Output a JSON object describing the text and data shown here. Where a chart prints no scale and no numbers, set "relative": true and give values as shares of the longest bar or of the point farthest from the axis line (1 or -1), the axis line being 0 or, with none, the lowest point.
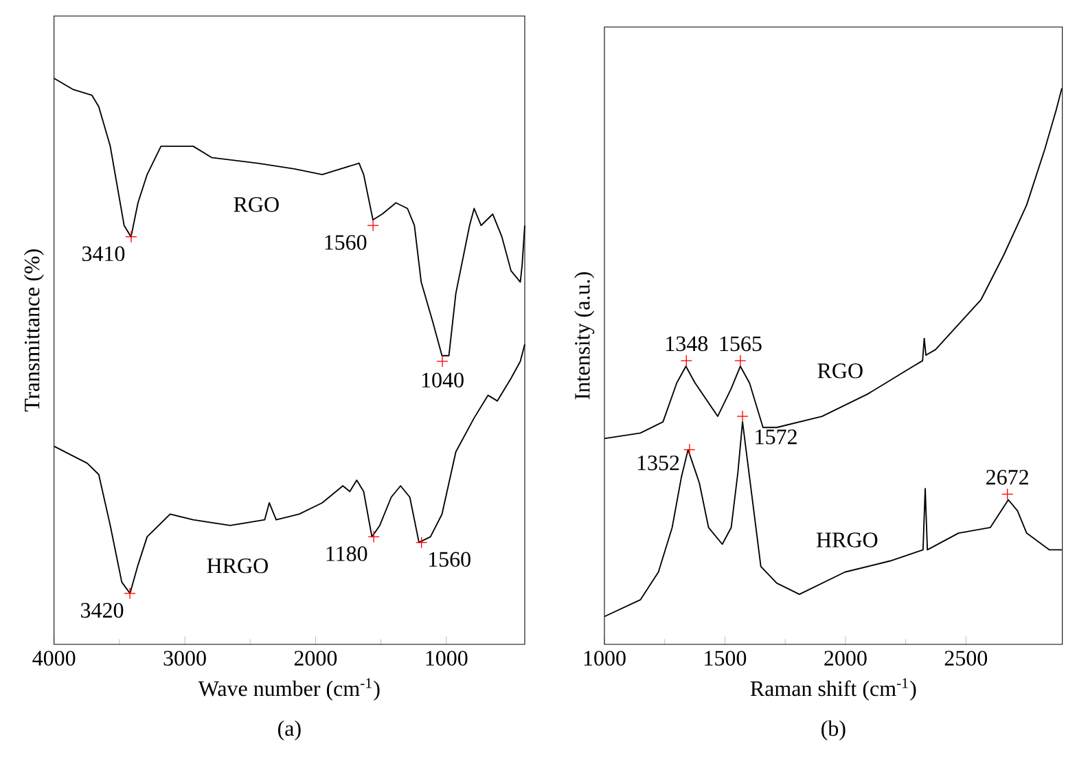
{
  "chart_data": [
    {
      "type": "line",
      "title": "(a)",
      "xlabel": "Wave number (cm$^{-1}$)",
      "ylabel": "Transmittance (%)",
      "relative": true,
      "tick_labels": "x",
      "xlim": [
        4000,
        400
      ],
      "xticks": [
        4000,
        3000,
        2000,
        1000
      ],
      "series": [
        {
          "name": "RGO",
          "color": "#000000",
          "x": [
            4000,
            3852,
            3710,
            3658,
            3570,
            3464,
            3411,
            3358,
            3288,
            3182,
            2936,
            2795,
            2442,
            2161,
            1949,
            1667,
            1632,
            1561,
            1491,
            1385,
            1297,
            1244,
            1192,
            1104,
            1033,
            980,
            927,
            822,
            787,
            734,
            645,
            575,
            505,
            434,
            420,
            400
          ],
          "values": [
            1.0,
            0.98,
            0.97,
            0.95,
            0.88,
            0.74,
            0.72,
            0.78,
            0.83,
            0.88,
            0.88,
            0.86,
            0.85,
            0.84,
            0.83,
            0.85,
            0.83,
            0.75,
            0.76,
            0.78,
            0.77,
            0.74,
            0.64,
            0.57,
            0.51,
            0.51,
            0.62,
            0.74,
            0.77,
            0.74,
            0.76,
            0.72,
            0.66,
            0.64,
            0.67,
            0.74
          ]
        },
        {
          "name": "HRGO",
          "color": "#000000",
          "x": [
            4000,
            3746,
            3658,
            3570,
            3482,
            3419,
            3358,
            3288,
            3112,
            2936,
            2653,
            2389,
            2354,
            2301,
            2125,
            1949,
            1791,
            1738,
            1685,
            1632,
            1569,
            1509,
            1421,
            1350,
            1279,
            1209,
            1121,
            1033,
            927,
            787,
            681,
            610,
            505,
            434,
            400
          ],
          "values": [
            0.35,
            0.32,
            0.3,
            0.21,
            0.11,
            0.09,
            0.14,
            0.19,
            0.23,
            0.22,
            0.21,
            0.22,
            0.25,
            0.22,
            0.23,
            0.25,
            0.28,
            0.27,
            0.29,
            0.27,
            0.19,
            0.21,
            0.26,
            0.28,
            0.26,
            0.18,
            0.19,
            0.23,
            0.34,
            0.4,
            0.44,
            0.43,
            0.47,
            0.5,
            0.53
          ]
        }
      ],
      "annotations": [
        {
          "text": "3410",
          "x": 3410,
          "y": 0.72
        },
        {
          "text": "1560",
          "x": 1560,
          "y": 0.74
        },
        {
          "text": "1040",
          "x": 1030,
          "y": 0.5
        },
        {
          "text": "3420",
          "x": 3420,
          "y": 0.09
        },
        {
          "text": "1180",
          "x": 1555,
          "y": 0.19
        },
        {
          "text": "1560",
          "x": 1190,
          "y": 0.18
        }
      ]
    },
    {
      "type": "line",
      "title": "(b)",
      "xlabel": "Raman shift (cm$^{-1}$)",
      "ylabel": "Intensity (a.u.)",
      "relative": true,
      "tick_labels": "x",
      "xlim": [
        1000,
        2900
      ],
      "xticks": [
        1000,
        1500,
        2000,
        2500
      ],
      "series": [
        {
          "name": "RGO",
          "color": "#000000",
          "x": [
            1000,
            1149,
            1243,
            1300,
            1338,
            1376,
            1470,
            1526,
            1564,
            1602,
            1658,
            1715,
            1903,
            2092,
            2281,
            2320,
            2327,
            2334,
            2374,
            2563,
            2657,
            2752,
            2827,
            2874,
            2898
          ],
          "values": [
            0.37,
            0.38,
            0.4,
            0.47,
            0.5,
            0.47,
            0.41,
            0.46,
            0.5,
            0.47,
            0.39,
            0.39,
            0.41,
            0.45,
            0.5,
            0.51,
            0.55,
            0.52,
            0.53,
            0.62,
            0.7,
            0.79,
            0.89,
            0.96,
            1.0
          ]
        },
        {
          "name": "HRGO",
          "color": "#000000",
          "x": [
            1000,
            1149,
            1224,
            1281,
            1319,
            1347,
            1394,
            1432,
            1489,
            1526,
            1554,
            1573,
            1611,
            1649,
            1715,
            1809,
            1998,
            2186,
            2322,
            2331,
            2340,
            2469,
            2601,
            2676,
            2714,
            2752,
            2846,
            2898
          ],
          "values": [
            0.05,
            0.08,
            0.13,
            0.21,
            0.3,
            0.35,
            0.29,
            0.21,
            0.18,
            0.21,
            0.31,
            0.4,
            0.27,
            0.14,
            0.11,
            0.09,
            0.13,
            0.15,
            0.17,
            0.28,
            0.17,
            0.2,
            0.21,
            0.26,
            0.24,
            0.2,
            0.17,
            0.17
          ]
        }
      ],
      "annotations": [
        {
          "text": "1348",
          "x": 1340,
          "y": 0.51
        },
        {
          "text": "1565",
          "x": 1564,
          "y": 0.51
        },
        {
          "text": "1352",
          "x": 1353,
          "y": 0.35
        },
        {
          "text": "1572",
          "x": 1573,
          "y": 0.41
        },
        {
          "text": "2672",
          "x": 2672,
          "y": 0.27
        }
      ]
    }
  ]
}
